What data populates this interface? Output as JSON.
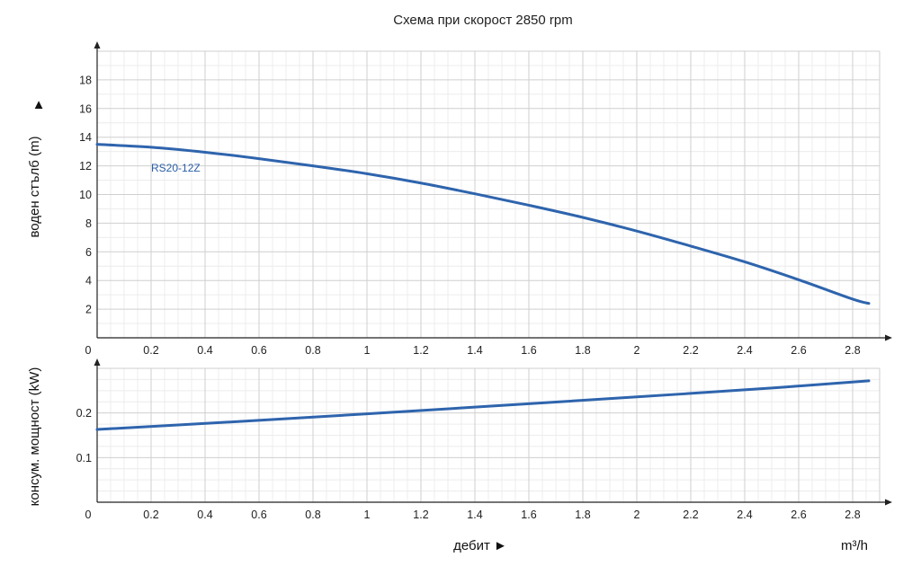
{
  "chart_data": [
    {
      "type": "line",
      "title": "Схема при скорост 2850 rpm",
      "ylabel": "воден стълб (m)",
      "ylabel_arrow": "▲",
      "xlim": [
        0,
        2.9
      ],
      "ylim": [
        0,
        20
      ],
      "x_ticks": [
        "0",
        "0.2",
        "0.4",
        "0.6",
        "0.8",
        "1",
        "1.2",
        "1.4",
        "1.6",
        "1.8",
        "2",
        "2.2",
        "2.4",
        "2.6",
        "2.8"
      ],
      "y_ticks": [
        "2",
        "4",
        "6",
        "8",
        "10",
        "12",
        "14",
        "16",
        "18"
      ],
      "grid": true,
      "series": [
        {
          "name": "RS20-12Z",
          "x": [
            0,
            0.2,
            0.4,
            0.6,
            0.8,
            1.0,
            1.2,
            1.4,
            1.6,
            1.8,
            2.0,
            2.2,
            2.4,
            2.6,
            2.8,
            2.86
          ],
          "y": [
            13.5,
            13.3,
            12.95,
            12.5,
            12.0,
            11.45,
            10.8,
            10.05,
            9.25,
            8.4,
            7.45,
            6.4,
            5.3,
            4.05,
            2.7,
            2.4
          ]
        }
      ]
    },
    {
      "type": "line",
      "ylabel": "консум. мощност (kW)",
      "xlabel": "дебит ►",
      "xunit": "m³/h",
      "xlim": [
        0,
        2.9
      ],
      "ylim": [
        0,
        0.3
      ],
      "x_ticks": [
        "0",
        "0.2",
        "0.4",
        "0.6",
        "0.8",
        "1",
        "1.2",
        "1.4",
        "1.6",
        "1.8",
        "2",
        "2.2",
        "2.4",
        "2.6",
        "2.8"
      ],
      "y_ticks": [
        "0.1",
        "0.2"
      ],
      "grid": true,
      "series": [
        {
          "x": [
            0,
            0.5,
            1.0,
            1.5,
            2.0,
            2.5,
            2.86
          ],
          "y": [
            0.163,
            0.18,
            0.198,
            0.217,
            0.236,
            0.256,
            0.272
          ]
        }
      ]
    }
  ]
}
